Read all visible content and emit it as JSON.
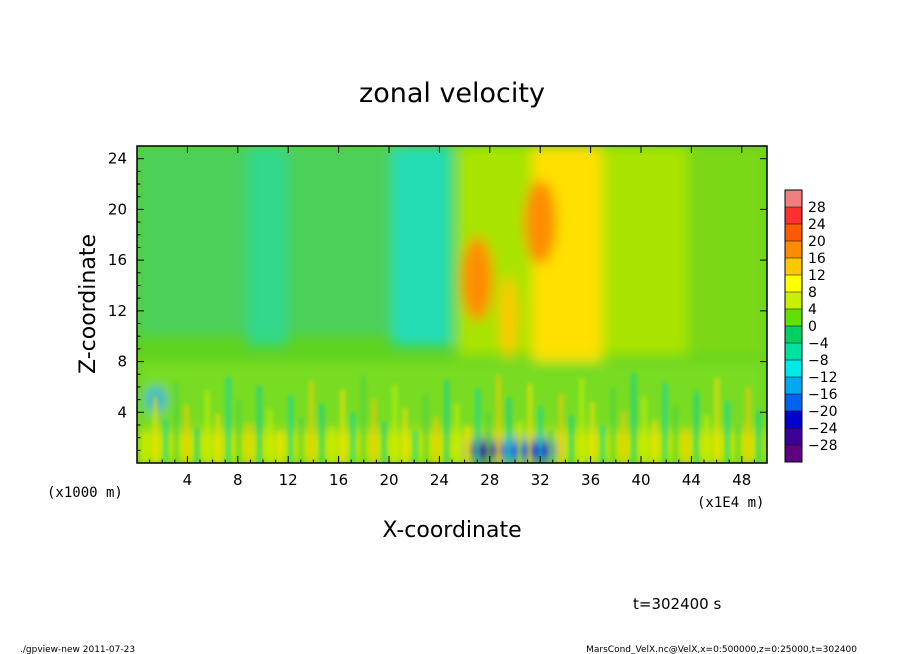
{
  "chart_data": {
    "type": "heatmap",
    "title": "zonal velocity",
    "xlabel": "X-coordinate",
    "ylabel": "Z-coordinate",
    "x_unit": "(x1E4 m)",
    "y_unit": "(x1000 m)",
    "xlim": [
      0,
      50
    ],
    "ylim": [
      0,
      25
    ],
    "x_ticks": [
      4,
      8,
      12,
      16,
      20,
      24,
      28,
      32,
      36,
      40,
      44,
      48
    ],
    "y_ticks": [
      4,
      8,
      12,
      16,
      20,
      24
    ],
    "colorbar": {
      "levels": [
        28,
        24,
        20,
        16,
        12,
        8,
        4,
        0,
        -4,
        -8,
        -12,
        -16,
        -20,
        -24,
        -28
      ],
      "colors": [
        "#f08080",
        "#ff3030",
        "#ff5a00",
        "#ff8c00",
        "#ffc800",
        "#ffff00",
        "#c8f000",
        "#64e000",
        "#00d060",
        "#00e0a0",
        "#00e8e8",
        "#00a8f0",
        "#0064f0",
        "#0000d0",
        "#3c0096",
        "#600080"
      ]
    },
    "features": [
      {
        "x": 27,
        "z": 14.5,
        "value": 18
      },
      {
        "x": 32,
        "z": 19,
        "value": 20
      },
      {
        "x": 29.5,
        "z": 11.5,
        "value": 14
      },
      {
        "x": 27.5,
        "z": 1,
        "value": -24
      },
      {
        "x": 32,
        "z": 1,
        "value": -22
      },
      {
        "x": 30,
        "z": 1,
        "value": -18
      },
      {
        "x": 1.5,
        "z": 5,
        "value": -13
      }
    ]
  },
  "annotations": {
    "time_label": "t=302400 s",
    "footer_left": "./gpview-new   2011-07-23",
    "footer_right": "MarsCond_VelX.nc@VelX,x=0:500000,z=0:25000,t=302400"
  }
}
